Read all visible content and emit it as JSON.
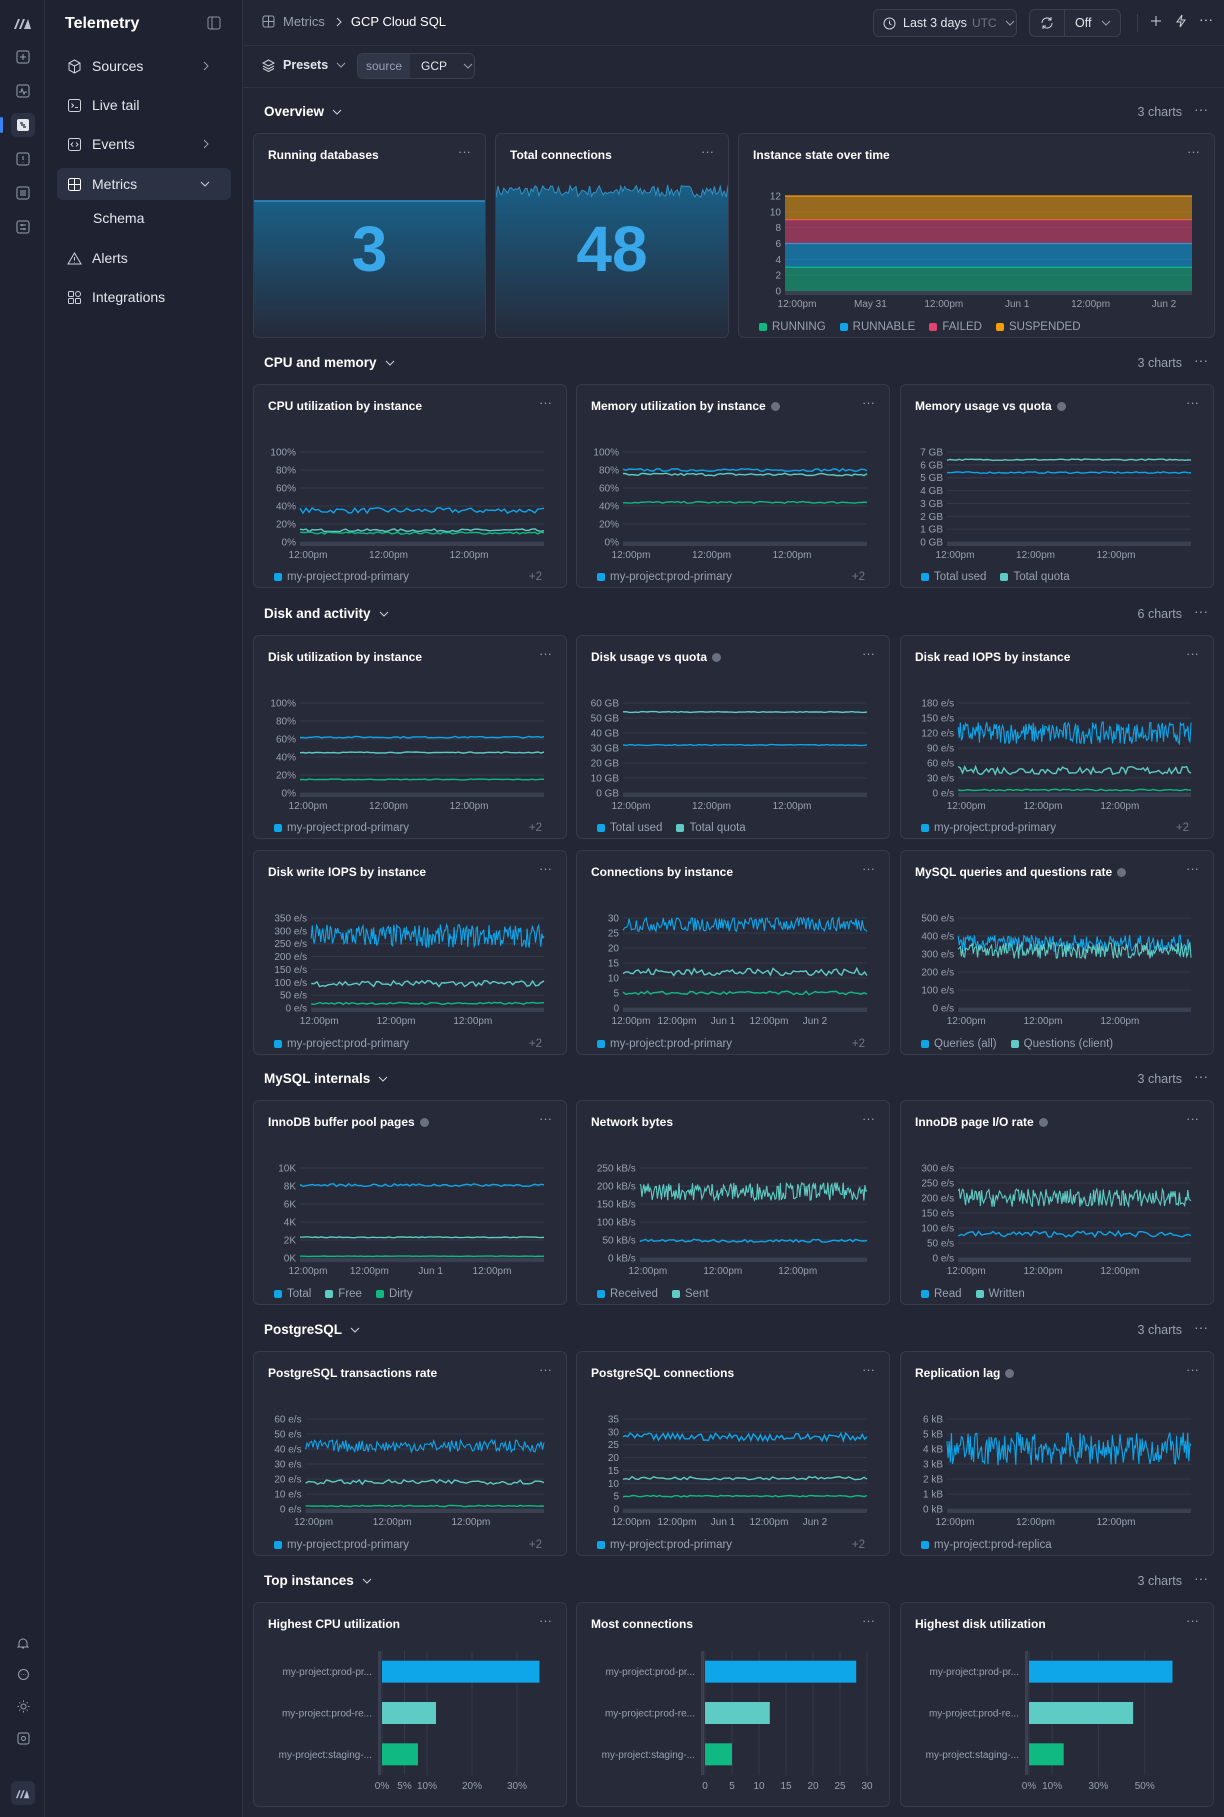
{
  "app": {
    "name": "Telemetry"
  },
  "nav": {
    "items": [
      {
        "label": "Sources",
        "icon": "box-icon",
        "chevron": true
      },
      {
        "label": "Live tail",
        "icon": "terminal-icon",
        "chevron": false
      },
      {
        "label": "Events",
        "icon": "code-icon",
        "chevron": true
      },
      {
        "label": "Metrics",
        "icon": "grid-icon",
        "chevron": true,
        "active": true
      },
      {
        "label": "Schema",
        "sub": true
      },
      {
        "label": "Alerts",
        "icon": "warning-icon",
        "chevron": false
      },
      {
        "label": "Integrations",
        "icon": "apps-icon",
        "chevron": false
      }
    ]
  },
  "header": {
    "breadcrumb_root": "Metrics",
    "breadcrumb_current": "GCP Cloud SQL",
    "time_range": "Last 3 days",
    "time_zone": "UTC",
    "refresh": "Off"
  },
  "filters": {
    "presets": "Presets",
    "source_key": "source",
    "source_value": "GCP"
  },
  "sections": [
    {
      "id": "overview",
      "title": "Overview",
      "count": "3 charts"
    },
    {
      "id": "cpu",
      "title": "CPU and memory",
      "count": "3 charts"
    },
    {
      "id": "disk",
      "title": "Disk and activity",
      "count": "6 charts"
    },
    {
      "id": "mysql",
      "title": "MySQL internals",
      "count": "3 charts"
    },
    {
      "id": "pg",
      "title": "PostgreSQL",
      "count": "3 charts"
    },
    {
      "id": "top",
      "title": "Top instances",
      "count": "3 charts"
    }
  ],
  "stats": [
    {
      "title": "Running databases",
      "value": "3"
    },
    {
      "title": "Total connections",
      "value": "48"
    }
  ],
  "colors": {
    "blue": "#0ea5e9",
    "teal": "#5eccc4",
    "green": "#10b981",
    "red": "#e0446f",
    "orange": "#f59e0b"
  },
  "chart_data": [
    {
      "id": "state",
      "title": "Instance state over time",
      "type": "area",
      "x_ticks": [
        "12:00pm",
        "May 31",
        "12:00pm",
        "Jun 1",
        "12:00pm",
        "Jun 2"
      ],
      "y_ticks": [
        "0",
        "2",
        "4",
        "6",
        "8",
        "10",
        "12"
      ],
      "ylim": [
        0,
        12
      ],
      "series": [
        {
          "name": "RUNNING",
          "value": 3
        },
        {
          "name": "RUNNABLE",
          "value": 3
        },
        {
          "name": "FAILED",
          "value": 3
        },
        {
          "name": "SUSPENDED",
          "value": 3
        }
      ]
    },
    {
      "id": "cpu_util",
      "title": "CPU utilization by instance",
      "type": "line",
      "y_ticks": [
        "0%",
        "20%",
        "40%",
        "60%",
        "80%",
        "100%"
      ],
      "x_ticks": [
        "12:00pm",
        "12:00pm",
        "12:00pm"
      ],
      "ylim": [
        0,
        100
      ],
      "series": [
        {
          "name": "my-project:prod-primary",
          "level": 35,
          "noise": 3
        },
        {
          "level": 13,
          "noise": 1.5
        },
        {
          "level": 10,
          "noise": 1.2
        }
      ],
      "legend": [
        "my-project:prod-primary"
      ],
      "more": "+2"
    },
    {
      "id": "mem_util",
      "title": "Memory utilization by instance",
      "info": true,
      "type": "line",
      "y_ticks": [
        "0%",
        "20%",
        "40%",
        "60%",
        "80%",
        "100%"
      ],
      "x_ticks": [
        "12:00pm",
        "12:00pm",
        "12:00pm"
      ],
      "ylim": [
        0,
        100
      ],
      "series": [
        {
          "name": "my-project:prod-primary",
          "level": 80,
          "noise": 1.5
        },
        {
          "level": 75,
          "noise": 1.5
        },
        {
          "level": 44,
          "noise": 1
        }
      ],
      "legend": [
        "my-project:prod-primary"
      ],
      "more": "+2"
    },
    {
      "id": "mem_quota",
      "title": "Memory usage vs quota",
      "info": true,
      "type": "line",
      "y_ticks": [
        "0 GB",
        "1 GB",
        "2 GB",
        "3 GB",
        "4 GB",
        "5 GB",
        "6 GB",
        "7 GB"
      ],
      "x_ticks": [
        "12:00pm",
        "12:00pm",
        "12:00pm"
      ],
      "ylim": [
        0,
        7
      ],
      "series": [
        {
          "name": "Total used",
          "level": 5.4,
          "noise": 0.06
        },
        {
          "name": "Total quota",
          "level": 6.4,
          "noise": 0.05
        }
      ],
      "legend": [
        "Total used",
        "Total quota"
      ]
    },
    {
      "id": "disk_util",
      "title": "Disk utilization by instance",
      "type": "line",
      "y_ticks": [
        "0%",
        "20%",
        "40%",
        "60%",
        "80%",
        "100%"
      ],
      "x_ticks": [
        "12:00pm",
        "12:00pm",
        "12:00pm"
      ],
      "ylim": [
        0,
        100
      ],
      "series": [
        {
          "name": "my-project:prod-primary",
          "level": 62,
          "noise": 0.8
        },
        {
          "level": 45,
          "noise": 0.6
        },
        {
          "level": 15,
          "noise": 0.5
        }
      ],
      "legend": [
        "my-project:prod-primary"
      ],
      "more": "+2"
    },
    {
      "id": "disk_quota",
      "title": "Disk usage vs quota",
      "info": true,
      "type": "line",
      "y_ticks": [
        "0 GB",
        "10 GB",
        "20 GB",
        "30 GB",
        "40 GB",
        "50 GB",
        "60 GB"
      ],
      "x_ticks": [
        "12:00pm",
        "12:00pm",
        "12:00pm"
      ],
      "ylim": [
        0,
        60
      ],
      "series": [
        {
          "name": "Total used",
          "level": 32,
          "noise": 0.3
        },
        {
          "name": "Total quota",
          "level": 54,
          "noise": 0.3
        }
      ],
      "legend": [
        "Total used",
        "Total quota"
      ]
    },
    {
      "id": "disk_read",
      "title": "Disk read IOPS by instance",
      "type": "line",
      "y_ticks": [
        "0 e/s",
        "30 e/s",
        "60 e/s",
        "90 e/s",
        "120 e/s",
        "150 e/s",
        "180 e/s"
      ],
      "x_ticks": [
        "12:00pm",
        "12:00pm",
        "12:00pm"
      ],
      "ylim": [
        0,
        180
      ],
      "series": [
        {
          "name": "my-project:prod-primary",
          "level": 120,
          "noise": 22
        },
        {
          "level": 45,
          "noise": 8
        },
        {
          "level": 6,
          "noise": 1.5
        }
      ],
      "legend": [
        "my-project:prod-primary"
      ],
      "more": "+2"
    },
    {
      "id": "disk_write",
      "title": "Disk write IOPS by instance",
      "type": "line",
      "y_ticks": [
        "0 e/s",
        "50 e/s",
        "100 e/s",
        "150 e/s",
        "200 e/s",
        "250 e/s",
        "300 e/s",
        "350 e/s"
      ],
      "x_ticks": [
        "12:00pm",
        "12:00pm",
        "12:00pm"
      ],
      "ylim": [
        0,
        350
      ],
      "series": [
        {
          "name": "my-project:prod-primary",
          "level": 280,
          "noise": 45
        },
        {
          "level": 95,
          "noise": 12
        },
        {
          "level": 18,
          "noise": 4
        }
      ],
      "legend": [
        "my-project:prod-primary"
      ],
      "more": "+2"
    },
    {
      "id": "conns",
      "title": "Connections by instance",
      "type": "line",
      "y_ticks": [
        "0",
        "5",
        "10",
        "15",
        "20",
        "25",
        "30"
      ],
      "x_ticks": [
        "12:00pm",
        "12:00pm",
        "Jun 1",
        "12:00pm",
        "Jun 2"
      ],
      "ylim": [
        0,
        30
      ],
      "series": [
        {
          "name": "my-project:prod-primary",
          "level": 28,
          "noise": 2.5
        },
        {
          "level": 12,
          "noise": 1.2
        },
        {
          "level": 5,
          "noise": 0.6
        }
      ],
      "legend": [
        "my-project:prod-primary"
      ],
      "more": "+2"
    },
    {
      "id": "mysql_q",
      "title": "MySQL queries and questions rate",
      "info": true,
      "type": "line",
      "y_ticks": [
        "0 e/s",
        "100 e/s",
        "200 e/s",
        "300 e/s",
        "400 e/s",
        "500 e/s"
      ],
      "x_ticks": [
        "12:00pm",
        "12:00pm",
        "12:00pm"
      ],
      "ylim": [
        0,
        500
      ],
      "series": [
        {
          "name": "Queries (all)",
          "level": 360,
          "noise": 45
        },
        {
          "name": "Questions (client)",
          "level": 320,
          "noise": 45
        }
      ],
      "legend": [
        "Queries (all)",
        "Questions (client)"
      ]
    },
    {
      "id": "innodb_bp",
      "title": "InnoDB buffer pool pages",
      "info": true,
      "type": "line",
      "y_ticks": [
        "0K",
        "2K",
        "4K",
        "6K",
        "8K",
        "10K"
      ],
      "x_ticks": [
        "12:00pm",
        "12:00pm",
        "Jun 1",
        "12:00pm"
      ],
      "ylim": [
        0,
        10
      ],
      "series": [
        {
          "name": "Total",
          "level": 8.1,
          "noise": 0.15
        },
        {
          "name": "Free",
          "level": 2.3,
          "noise": 0.05
        },
        {
          "name": "Dirty",
          "level": 0.2,
          "noise": 0.02
        }
      ],
      "legend": [
        "Total",
        "Free",
        "Dirty"
      ]
    },
    {
      "id": "net_bytes",
      "title": "Network bytes",
      "type": "line",
      "y_ticks": [
        "0 kB/s",
        "50 kB/s",
        "100 kB/s",
        "150 kB/s",
        "200 kB/s",
        "250 kB/s"
      ],
      "x_ticks": [
        "12:00pm",
        "12:00pm",
        "12:00pm"
      ],
      "ylim": [
        0,
        250
      ],
      "series": [
        {
          "name": "Received",
          "level": 48,
          "noise": 4
        },
        {
          "name": "Sent",
          "level": 185,
          "noise": 25
        }
      ],
      "legend": [
        "Received",
        "Sent"
      ]
    },
    {
      "id": "innodb_io",
      "title": "InnoDB page I/O rate",
      "info": true,
      "type": "line",
      "y_ticks": [
        "0 e/s",
        "50 e/s",
        "100 e/s",
        "150 e/s",
        "200 e/s",
        "250 e/s",
        "300 e/s"
      ],
      "x_ticks": [
        "12:00pm",
        "12:00pm",
        "12:00pm"
      ],
      "ylim": [
        0,
        300
      ],
      "series": [
        {
          "name": "Read",
          "level": 80,
          "noise": 10
        },
        {
          "name": "Written",
          "level": 200,
          "noise": 30
        }
      ],
      "legend": [
        "Read",
        "Written"
      ]
    },
    {
      "id": "pg_tx",
      "title": "PostgreSQL transactions rate",
      "type": "line",
      "y_ticks": [
        "0 e/s",
        "10 e/s",
        "20 e/s",
        "30 e/s",
        "40 e/s",
        "50 e/s",
        "60 e/s"
      ],
      "x_ticks": [
        "12:00pm",
        "12:00pm",
        "12:00pm"
      ],
      "ylim": [
        0,
        60
      ],
      "series": [
        {
          "name": "my-project:prod-primary",
          "level": 42,
          "noise": 4
        },
        {
          "level": 18,
          "noise": 1.5
        },
        {
          "level": 2,
          "noise": 0.4
        }
      ],
      "legend": [
        "my-project:prod-primary"
      ],
      "more": "+2"
    },
    {
      "id": "pg_conns",
      "title": "PostgreSQL connections",
      "type": "line",
      "y_ticks": [
        "0",
        "5",
        "10",
        "15",
        "20",
        "25",
        "30",
        "35"
      ],
      "x_ticks": [
        "12:00pm",
        "12:00pm",
        "Jun 1",
        "12:00pm",
        "Jun 2"
      ],
      "ylim": [
        0,
        35
      ],
      "series": [
        {
          "name": "my-project:prod-primary",
          "level": 28,
          "noise": 1.5
        },
        {
          "level": 12,
          "noise": 0.6
        },
        {
          "level": 5,
          "noise": 0.3
        }
      ],
      "legend": [
        "my-project:prod-primary"
      ],
      "more": "+2"
    },
    {
      "id": "repl_lag",
      "title": "Replication lag",
      "info": true,
      "type": "line",
      "y_ticks": [
        "0 kB",
        "1 kB",
        "2 kB",
        "3 kB",
        "4 kB",
        "5 kB",
        "6 kB"
      ],
      "x_ticks": [
        "12:00pm",
        "12:00pm",
        "12:00pm"
      ],
      "ylim": [
        0,
        6
      ],
      "series": [
        {
          "name": "my-project:prod-replica",
          "level": 4,
          "noise": 1.1
        }
      ],
      "legend": [
        "my-project:prod-replica"
      ]
    },
    {
      "id": "top_cpu",
      "title": "Highest CPU utilization",
      "type": "bar",
      "categories": [
        "my-project:prod-pr...",
        "my-project:prod-re...",
        "my-project:staging-..."
      ],
      "values": [
        35,
        12,
        8
      ],
      "x_ticks": [
        "0%",
        "5%",
        "10%",
        "20%",
        "30%"
      ],
      "x_tick_values": [
        0,
        5,
        10,
        20,
        30
      ],
      "xlim": [
        0,
        36
      ]
    },
    {
      "id": "top_conns",
      "title": "Most connections",
      "type": "bar",
      "categories": [
        "my-project:prod-pr...",
        "my-project:prod-re...",
        "my-project:staging-..."
      ],
      "values": [
        28,
        12,
        5
      ],
      "x_ticks": [
        "0",
        "5",
        "10",
        "15",
        "20",
        "25",
        "30"
      ],
      "x_tick_values": [
        0,
        5,
        10,
        15,
        20,
        25,
        30
      ],
      "xlim": [
        0,
        30
      ]
    },
    {
      "id": "top_disk",
      "title": "Highest disk utilization",
      "type": "bar",
      "categories": [
        "my-project:prod-pr...",
        "my-project:prod-re...",
        "my-project:staging-..."
      ],
      "values": [
        62,
        45,
        15
      ],
      "x_ticks": [
        "0%",
        "10%",
        "30%",
        "50%"
      ],
      "x_tick_values": [
        0,
        10,
        30,
        50
      ],
      "xlim": [
        0,
        70
      ]
    }
  ]
}
